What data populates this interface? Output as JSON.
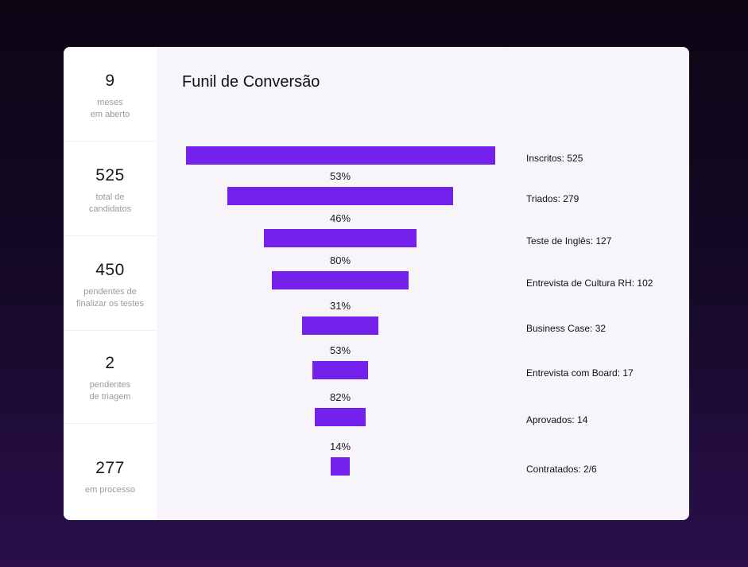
{
  "stats": [
    {
      "value": "9",
      "label_line1": "meses",
      "label_line2": "em aberto"
    },
    {
      "value": "525",
      "label_line1": "total de",
      "label_line2": "candidatos"
    },
    {
      "value": "450",
      "label_line1": "pendentes de",
      "label_line2": "finalizar os testes"
    },
    {
      "value": "2",
      "label_line1": "pendentes",
      "label_line2": "de triagem"
    },
    {
      "value": "277",
      "label_line1": "em processo",
      "label_line2": ""
    }
  ],
  "funnel": {
    "title": "Funil de Conversão",
    "accent_color": "#7421ec",
    "stages": [
      {
        "label": "Inscritos: 525",
        "count": 525
      },
      {
        "label": "Triados: 279",
        "count": 279
      },
      {
        "label": "Teste de Inglês: 127",
        "count": 127
      },
      {
        "label": "Entrevista de Cultura RH: 102",
        "count": 102
      },
      {
        "label": "Business Case: 32",
        "count": 32
      },
      {
        "label": "Entrevista com Board: 17",
        "count": 17
      },
      {
        "label": "Aprovados: 14",
        "count": 14
      },
      {
        "label": "Contratados: 2/6",
        "count": 2
      }
    ],
    "conversion_rates": [
      "53%",
      "46%",
      "80%",
      "31%",
      "53%",
      "82%",
      "14%"
    ]
  }
}
